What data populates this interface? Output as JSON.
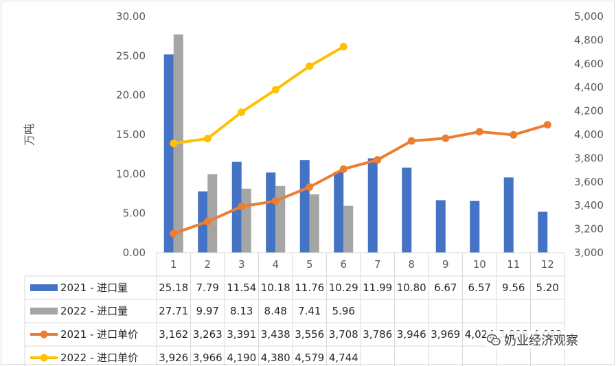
{
  "chart_data": {
    "type": "bar",
    "ylabel": "万吨",
    "categories": [
      "1",
      "2",
      "3",
      "4",
      "5",
      "6",
      "7",
      "8",
      "9",
      "10",
      "11",
      "12"
    ],
    "y_left": {
      "min": 0,
      "max": 30,
      "ticks": [
        "0.00",
        "5.00",
        "10.00",
        "15.00",
        "20.00",
        "25.00",
        "30.00"
      ]
    },
    "y_right": {
      "min": 3000,
      "max": 5000,
      "ticks": [
        "3,000",
        "3,200",
        "3,400",
        "3,600",
        "3,800",
        "4,000",
        "4,200",
        "4,400",
        "4,600",
        "4,800",
        "5,000"
      ]
    },
    "series": [
      {
        "name": "2021 - 进口量",
        "kind": "bar",
        "axis": "left",
        "color": "#4472c4",
        "values": [
          25.18,
          7.79,
          11.54,
          10.18,
          11.76,
          10.29,
          11.99,
          10.8,
          6.67,
          6.57,
          9.56,
          5.2
        ],
        "labels": [
          "25.18",
          "7.79",
          "11.54",
          "10.18",
          "11.76",
          "10.29",
          "11.99",
          "10.80",
          "6.67",
          "6.57",
          "9.56",
          "5.20"
        ]
      },
      {
        "name": "2022 - 进口量",
        "kind": "bar",
        "axis": "left",
        "color": "#a5a5a5",
        "values": [
          27.71,
          9.97,
          8.13,
          8.48,
          7.41,
          5.96,
          null,
          null,
          null,
          null,
          null,
          null
        ],
        "labels": [
          "27.71",
          "9.97",
          "8.13",
          "8.48",
          "7.41",
          "5.96",
          "",
          "",
          "",
          "",
          "",
          ""
        ]
      },
      {
        "name": "2021 - 进口单价",
        "kind": "line",
        "axis": "right",
        "color": "#ed7d31",
        "values": [
          3162,
          3263,
          3391,
          3438,
          3556,
          3708,
          3786,
          3946,
          3969,
          4024,
          3998,
          4083
        ],
        "labels": [
          "3,162",
          "3,263",
          "3,391",
          "3,438",
          "3,556",
          "3,708",
          "3,786",
          "3,946",
          "3,969",
          "4,024",
          "3,998",
          "4,083"
        ]
      },
      {
        "name": "2022 - 进口单价",
        "kind": "line",
        "axis": "right",
        "color": "#ffc000",
        "values": [
          3926,
          3966,
          4190,
          4380,
          4579,
          4744,
          null,
          null,
          null,
          null,
          null,
          null
        ],
        "labels": [
          "3,926",
          "3,966",
          "4,190",
          "4,380",
          "4,579",
          "4,744",
          "",
          "",
          "",
          "",
          "",
          ""
        ]
      }
    ],
    "grid": false,
    "legend": "data-table-left"
  },
  "watermark": {
    "text": "奶业经济观察",
    "icon": "wechat-icon"
  }
}
